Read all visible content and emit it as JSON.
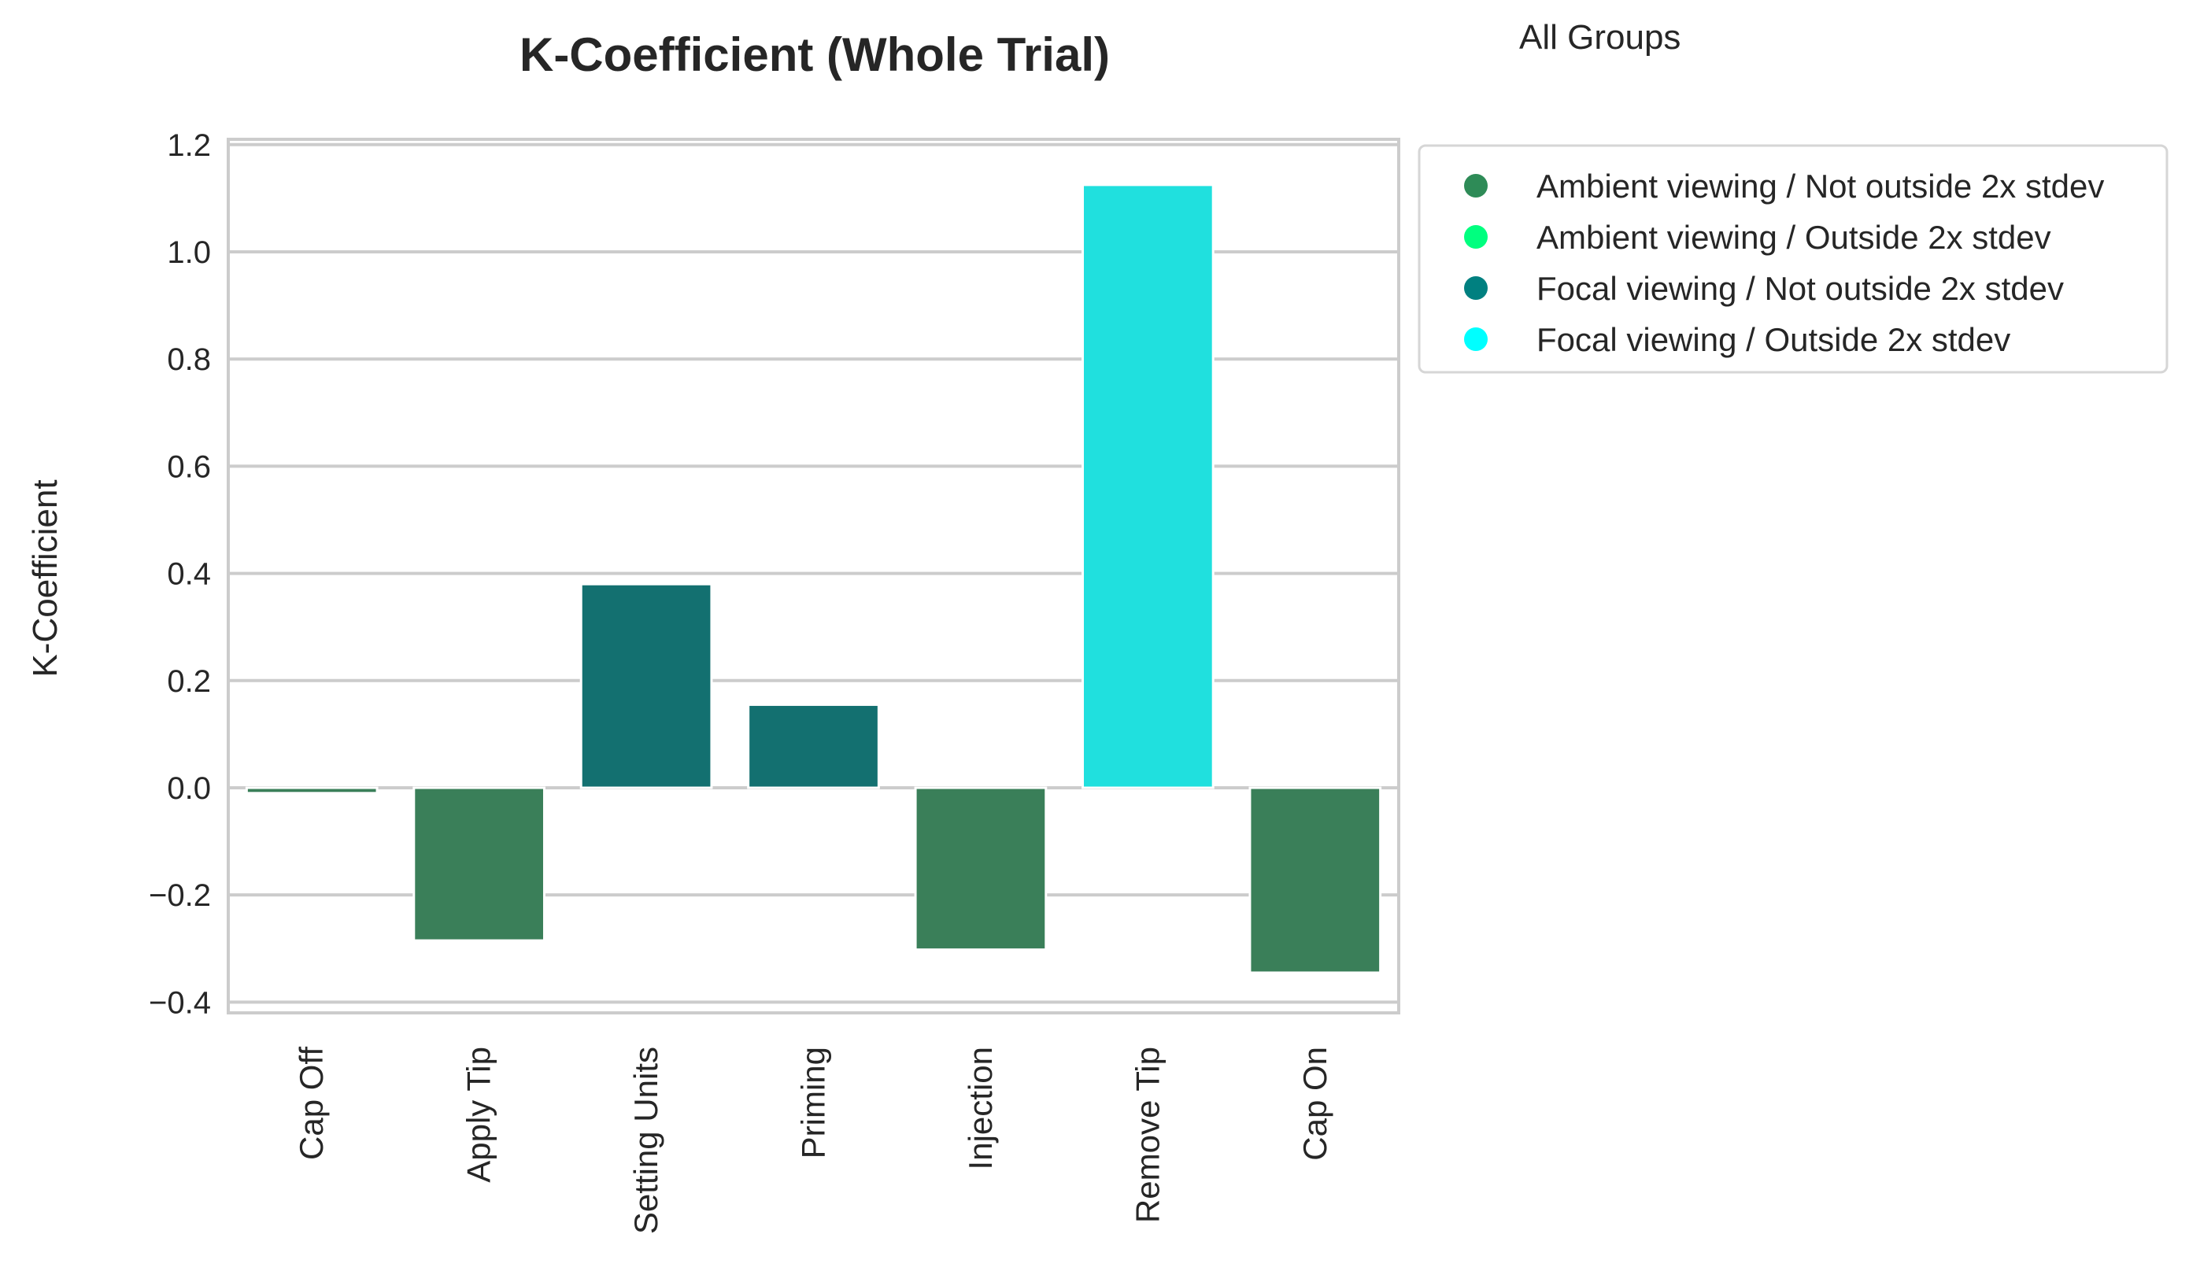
{
  "chart_data": {
    "type": "bar",
    "title": "K-Coefficient (Whole Trial)",
    "subtitle": "All Groups",
    "xlabel": "",
    "ylabel": "K-Coefficient",
    "ylim": [
      -0.42,
      1.21
    ],
    "yticks": [
      -0.4,
      -0.2,
      0.0,
      0.2,
      0.4,
      0.6,
      0.8,
      1.0,
      1.2
    ],
    "ytick_labels": [
      "−0.4",
      "−0.2",
      "0.0",
      "0.2",
      "0.4",
      "0.6",
      "0.8",
      "1.0",
      "1.2"
    ],
    "grid": true,
    "legend_position": "outside-right-top",
    "categories": [
      "Cap Off",
      "Apply Tip",
      "Setting Units",
      "Priming",
      "Injection",
      "Remove Tip",
      "Cap On"
    ],
    "values": [
      -0.01,
      -0.285,
      0.38,
      0.155,
      -0.302,
      1.125,
      -0.345
    ],
    "bar_group": [
      0,
      0,
      2,
      2,
      0,
      3,
      0
    ],
    "legend": [
      {
        "label": "Ambient viewing / Not outside 2x stdev",
        "color": "#2e8b57",
        "bar_color": "#3a7f59"
      },
      {
        "label": "Ambient viewing / Outside 2x stdev",
        "color": "#00ff7f",
        "bar_color": "#00ff7f"
      },
      {
        "label": "Focal viewing / Not outside 2x stdev",
        "color": "#008080",
        "bar_color": "#137070"
      },
      {
        "label": "Focal viewing / Outside 2x stdev",
        "color": "#00ffff",
        "bar_color": "#20e0de"
      }
    ]
  }
}
